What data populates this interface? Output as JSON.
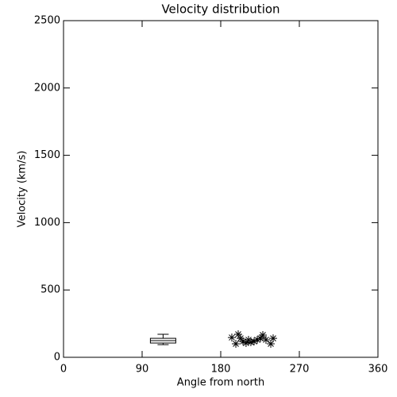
{
  "chart_data": {
    "type": "scatter",
    "title": "Velocity distribution",
    "x_label": "Angle from north",
    "y_label": "Velocity (km/s)",
    "xlim": [
      0,
      360
    ],
    "xticks": [
      0,
      90,
      180,
      270,
      360
    ],
    "ylim": [
      0,
      2500
    ],
    "yticks": [
      0,
      500,
      1000,
      1500,
      2000,
      2500
    ],
    "color": "#000000",
    "box": {
      "x": 114,
      "whislo": 94,
      "q1": 106,
      "median": 124,
      "q3": 141,
      "whishi": 171
    },
    "x": [
      192.7,
      197.3,
      200,
      202.7,
      205.5,
      209,
      211.8,
      214.5,
      218.2,
      221.8,
      225.5,
      228.2,
      231.8,
      237.3,
      240
    ],
    "y": [
      147,
      100,
      171,
      141,
      118,
      106,
      130,
      112,
      118,
      130,
      141,
      165,
      130,
      100,
      141
    ]
  }
}
